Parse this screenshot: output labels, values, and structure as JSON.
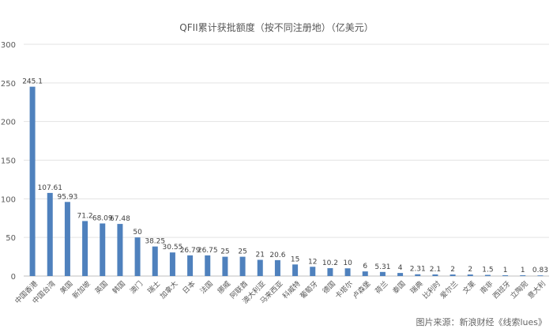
{
  "chart_data": {
    "type": "bar",
    "title": "QFII累计获批额度（按不同注册地）（亿美元）",
    "xlabel": "",
    "ylabel": "",
    "ylim": [
      0,
      300
    ],
    "yticks": [
      0,
      50,
      100,
      150,
      200,
      250,
      300
    ],
    "grid": true,
    "legend": "none",
    "bar_color": "#4F81BD",
    "categories": [
      "中国香港",
      "中国台湾",
      "美国",
      "新加坡",
      "英国",
      "韩国",
      "澳门",
      "瑞士",
      "加拿大",
      "日本",
      "法国",
      "挪威",
      "阿联酋",
      "澳大利亚",
      "马来西亚",
      "科威特",
      "葡萄牙",
      "德国",
      "卡塔尔",
      "卢森堡",
      "荷兰",
      "泰国",
      "瑞典",
      "比利时",
      "爱尔兰",
      "文莱",
      "南非",
      "西班牙",
      "立陶宛",
      "意大利"
    ],
    "values": [
      245.1,
      107.61,
      95.93,
      71.2,
      68.09,
      67.48,
      50,
      38.25,
      30.55,
      26.79,
      26.75,
      25,
      25,
      21,
      20.6,
      15,
      12,
      10.2,
      10,
      6,
      5.31,
      4,
      2.31,
      2.1,
      2,
      2,
      1.5,
      1,
      1,
      0.83
    ],
    "data_labels": [
      "245.1",
      "107.61",
      "95.93",
      "71.2",
      "68.09",
      "67.48",
      "50",
      "38.25",
      "30.55",
      "26.79",
      "26.75",
      "25",
      "25",
      "21",
      "20.6",
      "15",
      "12",
      "10.2",
      "10",
      "6",
      "5.31",
      "4",
      "2.31",
      "2.1",
      "2",
      "2",
      "1.5",
      "1",
      "1",
      "0.83"
    ]
  },
  "footer": "图片来源：新浪财经《线索lues》"
}
